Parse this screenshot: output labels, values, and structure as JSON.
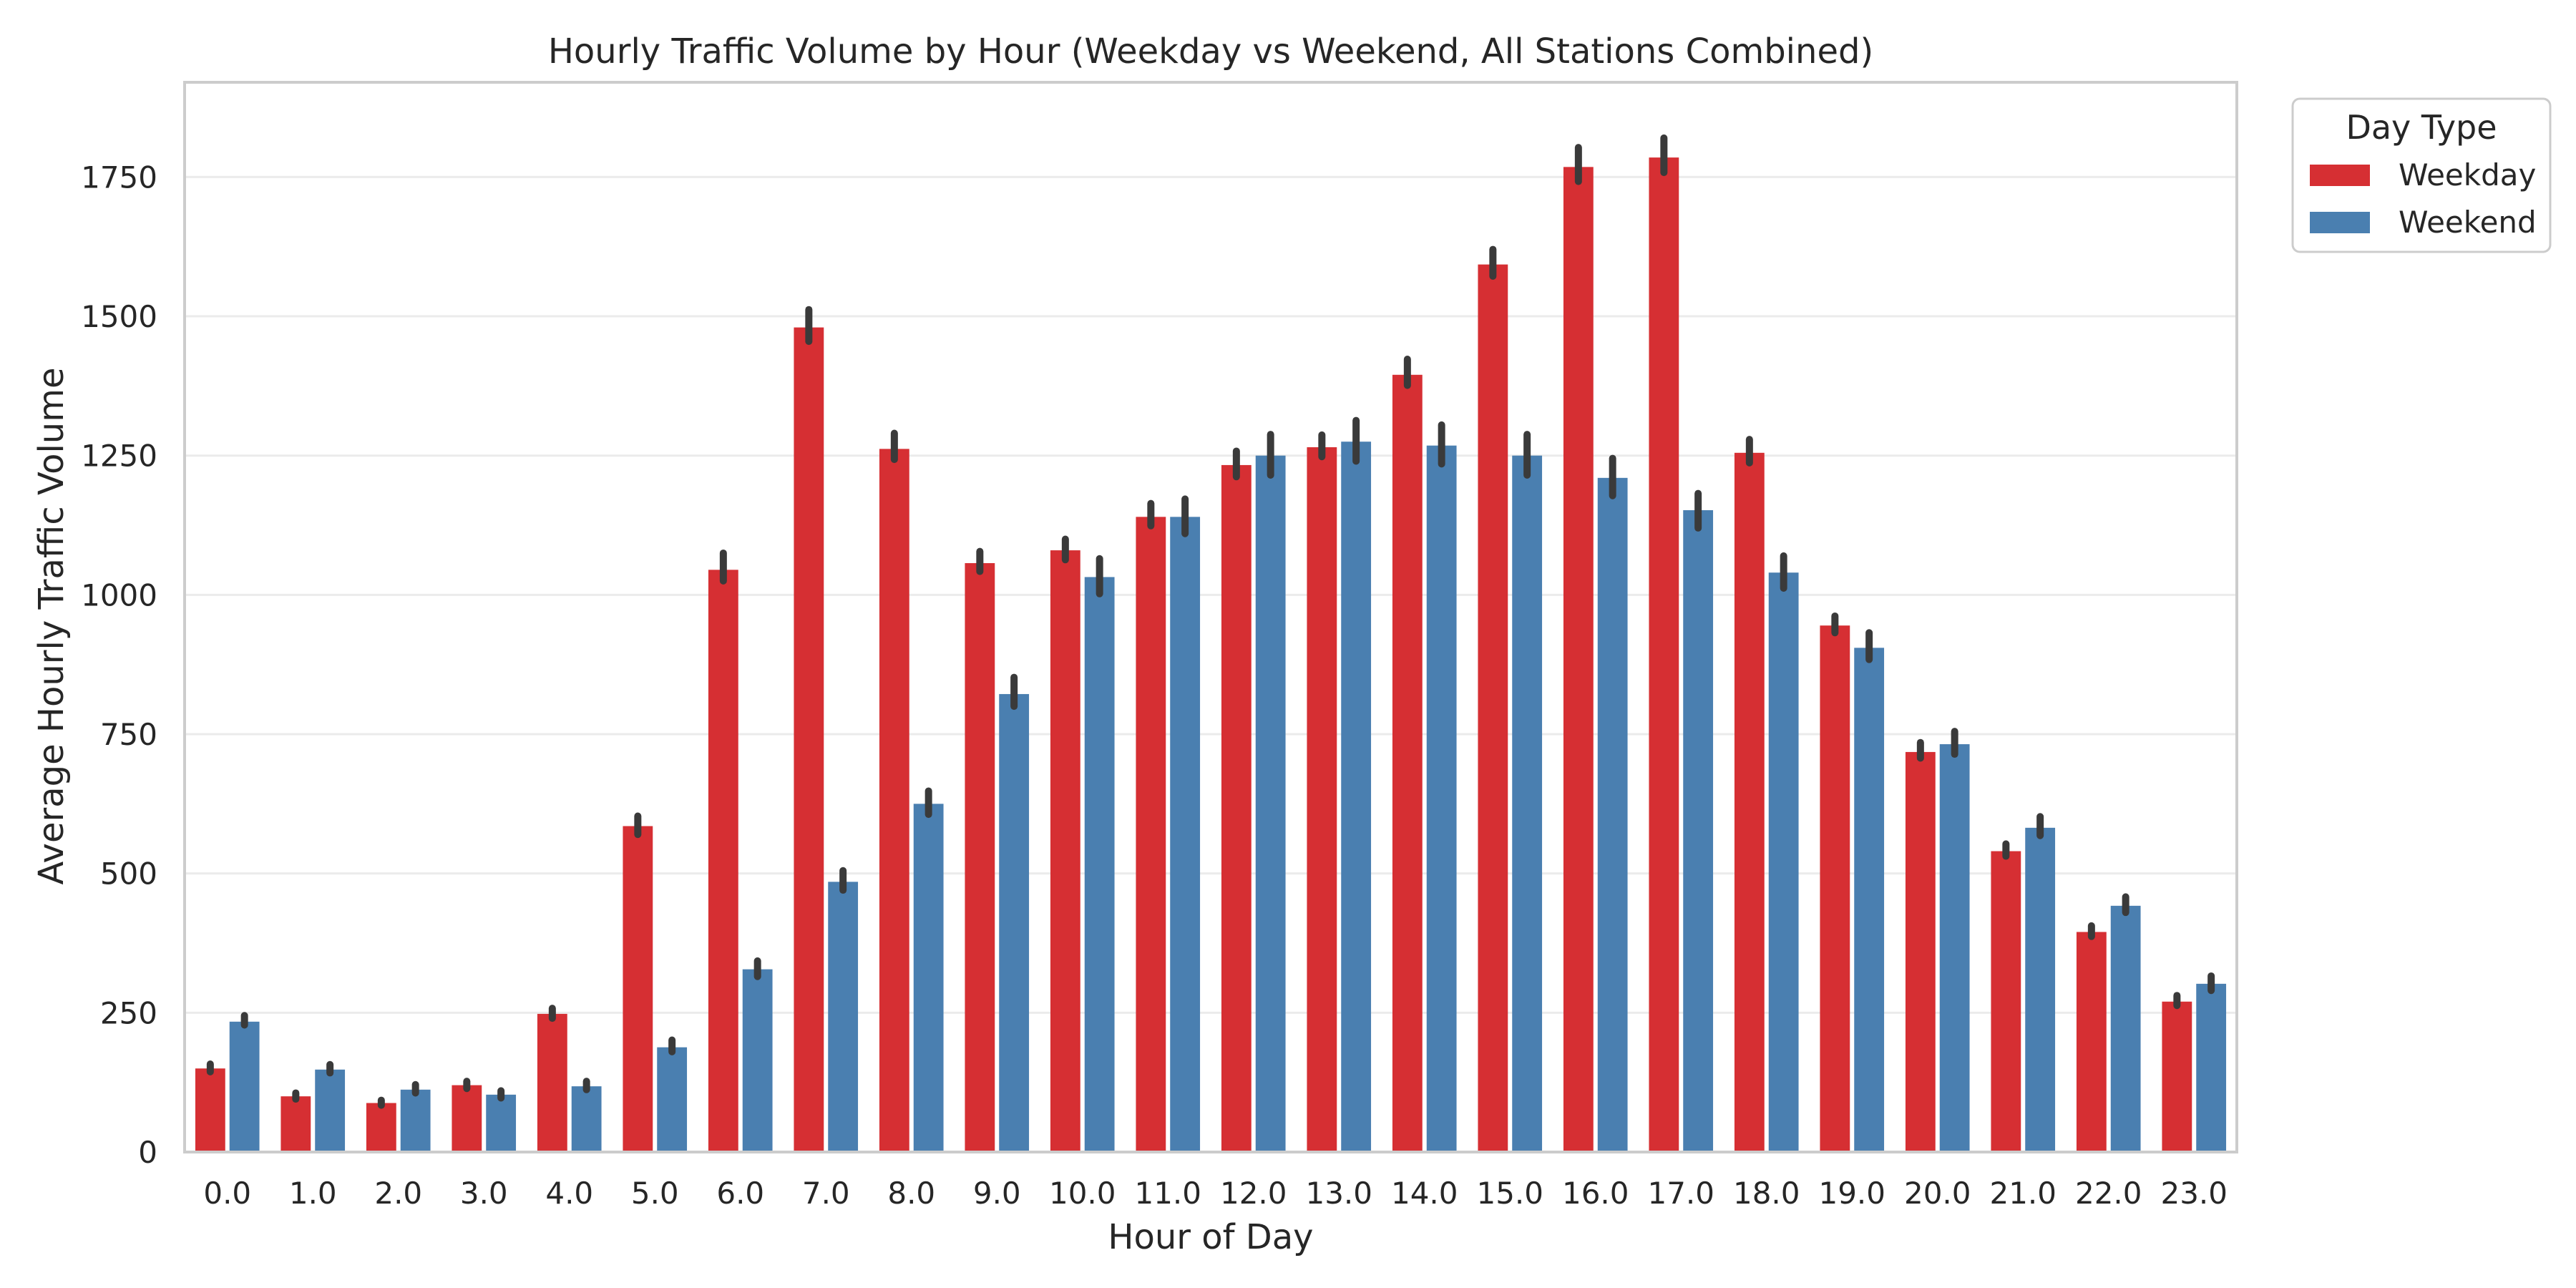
{
  "chart_data": {
    "type": "bar",
    "title": "Hourly Traffic Volume by Hour (Weekday vs Weekend, All Stations Combined)",
    "xlabel": "Hour of Day",
    "ylabel": "Average Hourly Traffic Volume",
    "ylim": [
      0,
      1920
    ],
    "yticks": [
      0,
      250,
      500,
      750,
      1000,
      1250,
      1500,
      1750
    ],
    "grid": true,
    "legend": {
      "title": "Day Type",
      "placement": "outside-top-right"
    },
    "categories": [
      "0.0",
      "1.0",
      "2.0",
      "3.0",
      "4.0",
      "5.0",
      "6.0",
      "7.0",
      "8.0",
      "9.0",
      "10.0",
      "11.0",
      "12.0",
      "13.0",
      "14.0",
      "15.0",
      "16.0",
      "17.0",
      "18.0",
      "19.0",
      "20.0",
      "21.0",
      "22.0",
      "23.0"
    ],
    "series": [
      {
        "name": "Weekday",
        "color": "#d62f33",
        "values": [
          150,
          100,
          88,
          120,
          248,
          585,
          1045,
          1480,
          1262,
          1057,
          1080,
          1140,
          1233,
          1265,
          1395,
          1593,
          1768,
          1785,
          1255,
          945,
          718,
          540,
          395,
          270
        ],
        "error_low": [
          144,
          95,
          84,
          114,
          240,
          570,
          1025,
          1455,
          1243,
          1042,
          1063,
          1124,
          1212,
          1248,
          1376,
          1572,
          1742,
          1758,
          1237,
          932,
          707,
          531,
          387,
          263
        ],
        "error_high": [
          158,
          106,
          93,
          127,
          258,
          603,
          1075,
          1512,
          1290,
          1078,
          1100,
          1164,
          1258,
          1287,
          1423,
          1620,
          1803,
          1820,
          1279,
          962,
          735,
          553,
          406,
          281
        ]
      },
      {
        "name": "Weekend",
        "color": "#4a7fb0",
        "values": [
          234,
          148,
          112,
          103,
          118,
          188,
          328,
          485,
          625,
          822,
          1032,
          1140,
          1250,
          1275,
          1268,
          1250,
          1210,
          1152,
          1040,
          905,
          732,
          582,
          442,
          302
        ],
        "error_low": [
          228,
          142,
          106,
          97,
          112,
          180,
          315,
          470,
          606,
          800,
          1002,
          1110,
          1215,
          1240,
          1235,
          1215,
          1178,
          1120,
          1012,
          884,
          714,
          568,
          430,
          290
        ],
        "error_high": [
          245,
          157,
          121,
          110,
          127,
          201,
          343,
          505,
          648,
          852,
          1065,
          1172,
          1288,
          1313,
          1305,
          1288,
          1245,
          1182,
          1070,
          932,
          755,
          602,
          458,
          316
        ]
      }
    ]
  }
}
